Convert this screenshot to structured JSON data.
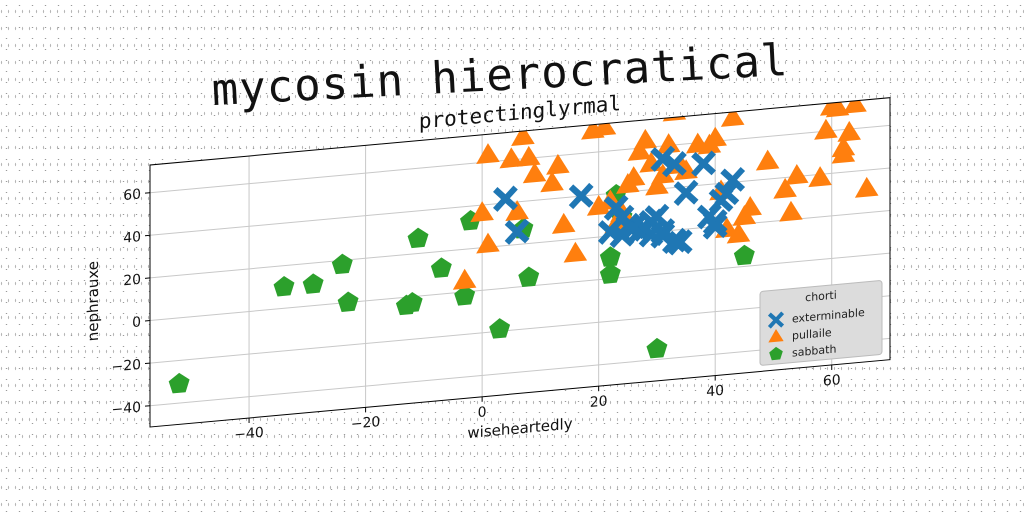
{
  "figure": {
    "title": "mycosin hierocratical"
  },
  "chart_data": {
    "type": "scatter",
    "title": "protectinglyrmal",
    "xlabel": "wiseheartedly",
    "ylabel": "nephrauxe",
    "xlim": [
      -57,
      70
    ],
    "ylim": [
      -50,
      73
    ],
    "xticks": [
      -40,
      -20,
      0,
      20,
      40,
      60
    ],
    "yticks": [
      -40,
      -20,
      0,
      20,
      40,
      60
    ],
    "xtick_labels": [
      "−40",
      "−20",
      "0",
      "20",
      "40",
      "60"
    ],
    "ytick_labels": [
      "−40",
      "−20",
      "0",
      "20",
      "40",
      "60"
    ],
    "grid": true,
    "legend": {
      "title": "chorti",
      "position": "lower right"
    },
    "series": [
      {
        "name": "exterminable",
        "marker": "x",
        "color": "#1f77b4",
        "points": [
          [
            4,
            42
          ],
          [
            6,
            26
          ],
          [
            17,
            40
          ],
          [
            23,
            33
          ],
          [
            24,
            28
          ],
          [
            25,
            24
          ],
          [
            22,
            22
          ],
          [
            24,
            20
          ],
          [
            27,
            21
          ],
          [
            28,
            22
          ],
          [
            29,
            25
          ],
          [
            30,
            27
          ],
          [
            31,
            20
          ],
          [
            31,
            18
          ],
          [
            33,
            15
          ],
          [
            34,
            14
          ],
          [
            35,
            37
          ],
          [
            31,
            54
          ],
          [
            33,
            51
          ],
          [
            38,
            50
          ],
          [
            40,
            22
          ],
          [
            39,
            25
          ],
          [
            40,
            20
          ],
          [
            41,
            32
          ],
          [
            42,
            35
          ],
          [
            43,
            41
          ],
          [
            26,
            23
          ],
          [
            29,
            19
          ]
        ]
      },
      {
        "name": "pullaile",
        "marker": "^",
        "color": "#ff7f0e",
        "points": [
          [
            -3,
            5
          ],
          [
            0,
            36
          ],
          [
            1,
            63
          ],
          [
            1,
            21
          ],
          [
            5,
            60
          ],
          [
            6,
            35
          ],
          [
            7,
            70
          ],
          [
            8,
            60
          ],
          [
            9,
            52
          ],
          [
            12,
            47
          ],
          [
            13,
            55
          ],
          [
            14,
            27
          ],
          [
            16,
            13
          ],
          [
            19,
            70
          ],
          [
            21,
            71
          ],
          [
            22,
            36
          ],
          [
            20,
            34
          ],
          [
            23,
            25
          ],
          [
            24,
            30
          ],
          [
            25,
            43
          ],
          [
            26,
            46
          ],
          [
            27,
            58
          ],
          [
            28,
            63
          ],
          [
            29,
            52
          ],
          [
            30,
            41
          ],
          [
            31,
            46
          ],
          [
            32,
            60
          ],
          [
            33,
            75
          ],
          [
            34,
            50
          ],
          [
            35,
            47
          ],
          [
            37,
            59
          ],
          [
            39,
            58
          ],
          [
            40,
            61
          ],
          [
            41,
            36
          ],
          [
            42,
            18
          ],
          [
            43,
            70
          ],
          [
            44,
            15
          ],
          [
            45,
            23
          ],
          [
            46,
            27
          ],
          [
            47,
            77
          ],
          [
            49,
            48
          ],
          [
            52,
            34
          ],
          [
            53,
            23
          ],
          [
            54,
            40
          ],
          [
            58,
            38
          ],
          [
            59,
            60
          ],
          [
            60,
            71
          ],
          [
            61,
            70
          ],
          [
            62,
            48
          ],
          [
            63,
            58
          ],
          [
            64,
            71
          ],
          [
            66,
            31
          ],
          [
            62,
            51
          ]
        ]
      },
      {
        "name": "sabbath",
        "marker": "p",
        "color": "#2ca02c",
        "points": [
          [
            -52,
            -31
          ],
          [
            -34,
            10
          ],
          [
            -29,
            10
          ],
          [
            -24,
            18
          ],
          [
            -23,
            0
          ],
          [
            -13,
            -4
          ],
          [
            -12,
            -3
          ],
          [
            -11,
            27
          ],
          [
            -7,
            12
          ],
          [
            -3,
            -2
          ],
          [
            -2,
            33
          ],
          [
            3,
            -19
          ],
          [
            7,
            27
          ],
          [
            8,
            4
          ],
          [
            22,
            10
          ],
          [
            22,
            2
          ],
          [
            23,
            39
          ],
          [
            24,
            28
          ],
          [
            30,
            -35
          ],
          [
            45,
            5
          ]
        ]
      }
    ]
  }
}
